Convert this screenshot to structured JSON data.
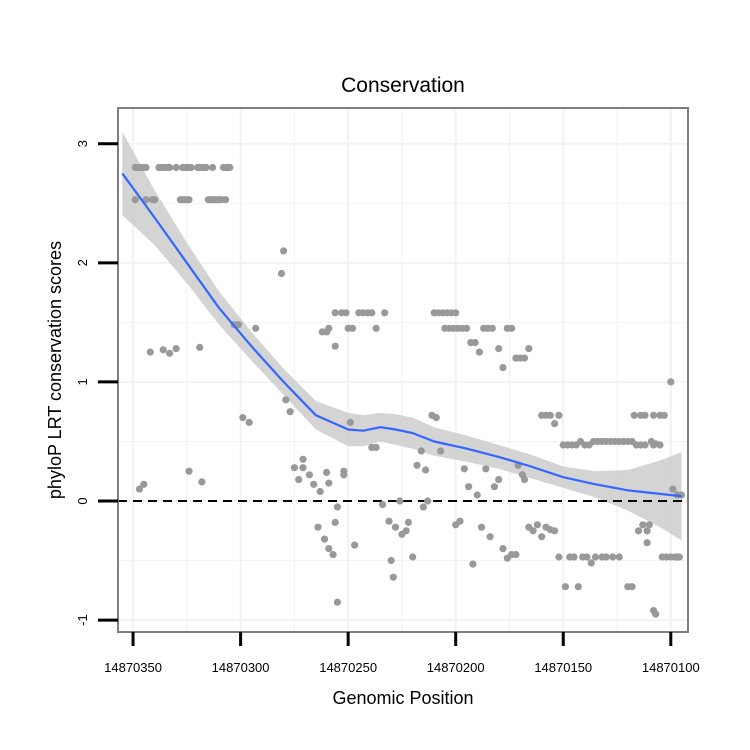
{
  "chart_data": {
    "type": "scatter",
    "title": "Conservation",
    "xlabel": "Genomic Position",
    "ylabel": "phyloP LRT conservation scores",
    "x_reversed": true,
    "xlim": [
      14870357,
      14870092
    ],
    "ylim": [
      -1.1,
      3.3
    ],
    "x_ticks": [
      14870350,
      14870300,
      14870250,
      14870200,
      14870150,
      14870100
    ],
    "x_tick_labels": [
      "14870350",
      "14870300",
      "14870250",
      "14870200",
      "14870150",
      "14870100"
    ],
    "y_ticks": [
      -1,
      0,
      1,
      2,
      3
    ],
    "y_tick_labels": [
      "-1",
      "0",
      "1",
      "2",
      "3"
    ],
    "reference_line": {
      "y": 0,
      "style": "dashed"
    },
    "grid": true,
    "colors": {
      "points": "#999999",
      "smooth": "#3366ff",
      "ribbon": "#cccccc",
      "panel_border": "#7f7f7f",
      "grid": "#f2f2f2"
    },
    "points": [
      [
        14870349,
        2.8
      ],
      [
        14870348,
        2.8
      ],
      [
        14870347,
        2.8
      ],
      [
        14870346,
        2.8
      ],
      [
        14870345,
        2.8
      ],
      [
        14870344,
        2.8
      ],
      [
        14870349,
        2.53
      ],
      [
        14870344,
        2.53
      ],
      [
        14870341,
        2.53
      ],
      [
        14870340,
        2.53
      ],
      [
        14870338,
        2.8
      ],
      [
        14870337,
        2.8
      ],
      [
        14870336,
        2.8
      ],
      [
        14870335,
        2.8
      ],
      [
        14870334,
        2.8
      ],
      [
        14870333,
        2.8
      ],
      [
        14870330,
        2.8
      ],
      [
        14870327,
        2.8
      ],
      [
        14870326,
        2.8
      ],
      [
        14870325,
        2.8
      ],
      [
        14870324,
        2.8
      ],
      [
        14870323,
        2.8
      ],
      [
        14870328,
        2.53
      ],
      [
        14870327,
        2.53
      ],
      [
        14870326,
        2.53
      ],
      [
        14870325,
        2.53
      ],
      [
        14870324,
        2.53
      ],
      [
        14870320,
        2.8
      ],
      [
        14870319,
        2.8
      ],
      [
        14870318,
        2.8
      ],
      [
        14870317,
        2.8
      ],
      [
        14870316,
        2.8
      ],
      [
        14870313,
        2.8
      ],
      [
        14870315,
        2.53
      ],
      [
        14870314,
        2.53
      ],
      [
        14870313,
        2.53
      ],
      [
        14870312,
        2.53
      ],
      [
        14870311,
        2.53
      ],
      [
        14870310,
        2.53
      ],
      [
        14870309,
        2.53
      ],
      [
        14870307,
        2.53
      ],
      [
        14870308,
        2.8
      ],
      [
        14870307,
        2.8
      ],
      [
        14870306,
        2.8
      ],
      [
        14870305,
        2.8
      ],
      [
        14870347,
        0.1
      ],
      [
        14870345,
        0.14
      ],
      [
        14870342,
        1.25
      ],
      [
        14870336,
        1.27
      ],
      [
        14870333,
        1.24
      ],
      [
        14870330,
        1.28
      ],
      [
        14870324,
        0.25
      ],
      [
        14870318,
        0.16
      ],
      [
        14870319,
        1.29
      ],
      [
        14870303,
        1.48
      ],
      [
        14870301,
        1.48
      ],
      [
        14870299,
        0.7
      ],
      [
        14870296,
        0.66
      ],
      [
        14870293,
        1.45
      ],
      [
        14870280,
        2.1
      ],
      [
        14870281,
        1.91
      ],
      [
        14870277,
        0.75
      ],
      [
        14870279,
        0.85
      ],
      [
        14870275,
        0.28
      ],
      [
        14870273,
        0.18
      ],
      [
        14870271,
        0.35
      ],
      [
        14870271,
        0.28
      ],
      [
        14870268,
        0.22
      ],
      [
        14870266,
        0.14
      ],
      [
        14870263,
        0.08
      ],
      [
        14870260,
        0.24
      ],
      [
        14870259,
        0.15
      ],
      [
        14870256,
        -0.18
      ],
      [
        14870255,
        -0.05
      ],
      [
        14870257,
        -0.45
      ],
      [
        14870259,
        -0.4
      ],
      [
        14870264,
        -0.22
      ],
      [
        14870261,
        -0.32
      ],
      [
        14870255,
        -0.85
      ],
      [
        14870252,
        0.25
      ],
      [
        14870252,
        0.22
      ],
      [
        14870249,
        0.66
      ],
      [
        14870247,
        -0.37
      ],
      [
        14870256,
        1.3
      ],
      [
        14870260,
        1.42
      ],
      [
        14870262,
        1.42
      ],
      [
        14870259,
        1.45
      ],
      [
        14870256,
        1.58
      ],
      [
        14870253,
        1.58
      ],
      [
        14870251,
        1.58
      ],
      [
        14870250,
        1.45
      ],
      [
        14870248,
        1.45
      ],
      [
        14870245,
        1.58
      ],
      [
        14870243,
        1.58
      ],
      [
        14870241,
        1.58
      ],
      [
        14870239,
        1.58
      ],
      [
        14870237,
        1.45
      ],
      [
        14870233,
        1.58
      ],
      [
        14870239,
        0.45
      ],
      [
        14870237,
        0.45
      ],
      [
        14870234,
        -0.03
      ],
      [
        14870231,
        -0.17
      ],
      [
        14870230,
        -0.5
      ],
      [
        14870229,
        -0.64
      ],
      [
        14870228,
        -0.22
      ],
      [
        14870226,
        0.0
      ],
      [
        14870225,
        -0.28
      ],
      [
        14870223,
        -0.25
      ],
      [
        14870222,
        -0.18
      ],
      [
        14870220,
        -0.47
      ],
      [
        14870218,
        0.3
      ],
      [
        14870216,
        0.42
      ],
      [
        14870215,
        -0.05
      ],
      [
        14870214,
        0.26
      ],
      [
        14870213,
        0.0
      ],
      [
        14870211,
        0.72
      ],
      [
        14870209,
        0.7
      ],
      [
        14870207,
        0.42
      ],
      [
        14870210,
        1.58
      ],
      [
        14870208,
        1.58
      ],
      [
        14870206,
        1.58
      ],
      [
        14870204,
        1.58
      ],
      [
        14870202,
        1.58
      ],
      [
        14870200,
        1.58
      ],
      [
        14870205,
        1.45
      ],
      [
        14870203,
        1.45
      ],
      [
        14870201,
        1.45
      ],
      [
        14870199,
        1.45
      ],
      [
        14870197,
        1.45
      ],
      [
        14870195,
        1.45
      ],
      [
        14870193,
        1.33
      ],
      [
        14870191,
        1.33
      ],
      [
        14870189,
        1.25
      ],
      [
        14870187,
        1.45
      ],
      [
        14870185,
        1.45
      ],
      [
        14870183,
        1.45
      ],
      [
        14870180,
        1.28
      ],
      [
        14870178,
        1.12
      ],
      [
        14870176,
        1.45
      ],
      [
        14870174,
        1.45
      ],
      [
        14870172,
        1.2
      ],
      [
        14870170,
        1.2
      ],
      [
        14870168,
        1.2
      ],
      [
        14870166,
        1.28
      ],
      [
        14870200,
        -0.2
      ],
      [
        14870198,
        -0.17
      ],
      [
        14870196,
        0.27
      ],
      [
        14870194,
        0.12
      ],
      [
        14870192,
        -0.53
      ],
      [
        14870190,
        0.05
      ],
      [
        14870188,
        -0.22
      ],
      [
        14870186,
        0.27
      ],
      [
        14870184,
        -0.3
      ],
      [
        14870182,
        0.12
      ],
      [
        14870180,
        0.18
      ],
      [
        14870178,
        -0.4
      ],
      [
        14870176,
        -0.48
      ],
      [
        14870174,
        -0.45
      ],
      [
        14870172,
        -0.45
      ],
      [
        14870171,
        0.3
      ],
      [
        14870169,
        0.22
      ],
      [
        14870168,
        0.18
      ],
      [
        14870166,
        -0.22
      ],
      [
        14870164,
        -0.25
      ],
      [
        14870162,
        -0.2
      ],
      [
        14870160,
        -0.3
      ],
      [
        14870158,
        -0.22
      ],
      [
        14870156,
        -0.24
      ],
      [
        14870154,
        -0.25
      ],
      [
        14870160,
        0.72
      ],
      [
        14870158,
        0.72
      ],
      [
        14870156,
        0.72
      ],
      [
        14870154,
        0.65
      ],
      [
        14870152,
        0.72
      ],
      [
        14870150,
        0.47
      ],
      [
        14870148,
        0.47
      ],
      [
        14870146,
        0.47
      ],
      [
        14870144,
        0.47
      ],
      [
        14870142,
        0.5
      ],
      [
        14870140,
        0.47
      ],
      [
        14870138,
        0.47
      ],
      [
        14870136,
        0.5
      ],
      [
        14870134,
        0.5
      ],
      [
        14870132,
        0.5
      ],
      [
        14870130,
        0.5
      ],
      [
        14870128,
        0.5
      ],
      [
        14870126,
        0.5
      ],
      [
        14870124,
        0.5
      ],
      [
        14870122,
        0.5
      ],
      [
        14870120,
        0.5
      ],
      [
        14870118,
        0.5
      ],
      [
        14870116,
        0.47
      ],
      [
        14870114,
        0.47
      ],
      [
        14870112,
        0.47
      ],
      [
        14870152,
        -0.47
      ],
      [
        14870149,
        -0.72
      ],
      [
        14870147,
        -0.47
      ],
      [
        14870145,
        -0.47
      ],
      [
        14870143,
        -0.72
      ],
      [
        14870141,
        -0.47
      ],
      [
        14870139,
        -0.47
      ],
      [
        14870137,
        -0.52
      ],
      [
        14870135,
        -0.47
      ],
      [
        14870132,
        -0.47
      ],
      [
        14870130,
        -0.47
      ],
      [
        14870127,
        -0.47
      ],
      [
        14870124,
        -0.47
      ],
      [
        14870117,
        0.72
      ],
      [
        14870114,
        0.72
      ],
      [
        14870112,
        0.72
      ],
      [
        14870108,
        0.72
      ],
      [
        14870105,
        0.72
      ],
      [
        14870103,
        0.72
      ],
      [
        14870109,
        0.5
      ],
      [
        14870108,
        0.47
      ],
      [
        14870107,
        0.48
      ],
      [
        14870105,
        0.47
      ],
      [
        14870100,
        1.0
      ],
      [
        14870099,
        0.1
      ],
      [
        14870097,
        0.05
      ],
      [
        14870095,
        0.05
      ],
      [
        14870120,
        -0.72
      ],
      [
        14870118,
        -0.72
      ],
      [
        14870115,
        -0.25
      ],
      [
        14870113,
        -0.2
      ],
      [
        14870111,
        -0.25
      ],
      [
        14870110,
        -0.2
      ],
      [
        14870108,
        -0.92
      ],
      [
        14870107,
        -0.95
      ],
      [
        14870104,
        -0.47
      ],
      [
        14870102,
        -0.47
      ],
      [
        14870100,
        -0.47
      ],
      [
        14870098,
        -0.47
      ],
      [
        14870097,
        -0.47
      ],
      [
        14870096,
        -0.47
      ],
      [
        14870111,
        -0.35
      ]
    ],
    "smooth": {
      "x": [
        14870355,
        14870340,
        14870325,
        14870310,
        14870295,
        14870280,
        14870265,
        14870250,
        14870243,
        14870235,
        14870228,
        14870220,
        14870210,
        14870195,
        14870180,
        14870165,
        14870150,
        14870135,
        14870120,
        14870105,
        14870095
      ],
      "y": [
        2.75,
        2.38,
        2.0,
        1.62,
        1.3,
        1.0,
        0.72,
        0.6,
        0.59,
        0.62,
        0.6,
        0.57,
        0.5,
        0.44,
        0.37,
        0.29,
        0.2,
        0.14,
        0.09,
        0.06,
        0.04
      ],
      "lower": [
        2.4,
        2.15,
        1.83,
        1.48,
        1.18,
        0.89,
        0.6,
        0.46,
        0.46,
        0.5,
        0.47,
        0.44,
        0.38,
        0.33,
        0.27,
        0.19,
        0.11,
        0.03,
        -0.08,
        -0.22,
        -0.33
      ],
      "upper": [
        3.1,
        2.61,
        2.17,
        1.76,
        1.42,
        1.11,
        0.84,
        0.74,
        0.72,
        0.74,
        0.73,
        0.7,
        0.62,
        0.55,
        0.47,
        0.39,
        0.29,
        0.25,
        0.26,
        0.34,
        0.41
      ]
    }
  }
}
